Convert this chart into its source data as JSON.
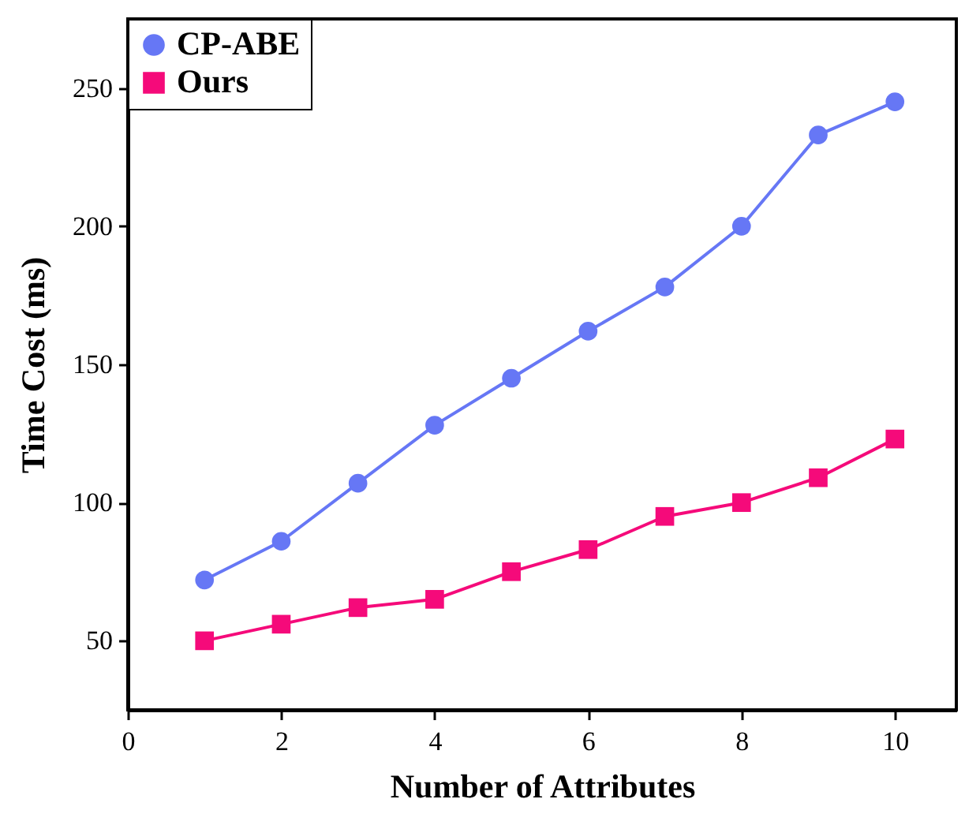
{
  "chart_data": {
    "type": "line",
    "xlabel": "Number of Attributes",
    "ylabel": "Time Cost (ms)",
    "x": [
      1,
      2,
      3,
      4,
      5,
      6,
      7,
      8,
      9,
      10
    ],
    "series": [
      {
        "name": "CP-ABE",
        "color": "#6677f5",
        "marker": "circle",
        "values": [
          72,
          86,
          107,
          128,
          145,
          162,
          178,
          200,
          233,
          245
        ]
      },
      {
        "name": "Ours",
        "color": "#f50a7a",
        "marker": "square",
        "values": [
          50,
          56,
          62,
          65,
          75,
          83,
          95,
          100,
          109,
          123
        ]
      }
    ],
    "xlim": [
      0,
      10.8
    ],
    "xticks": [
      0,
      2,
      4,
      6,
      8,
      10
    ],
    "ylim": [
      25,
      275
    ],
    "yticks": [
      50,
      100,
      150,
      200,
      250
    ],
    "grid": false,
    "legend": "top left",
    "line_style": "solid"
  }
}
